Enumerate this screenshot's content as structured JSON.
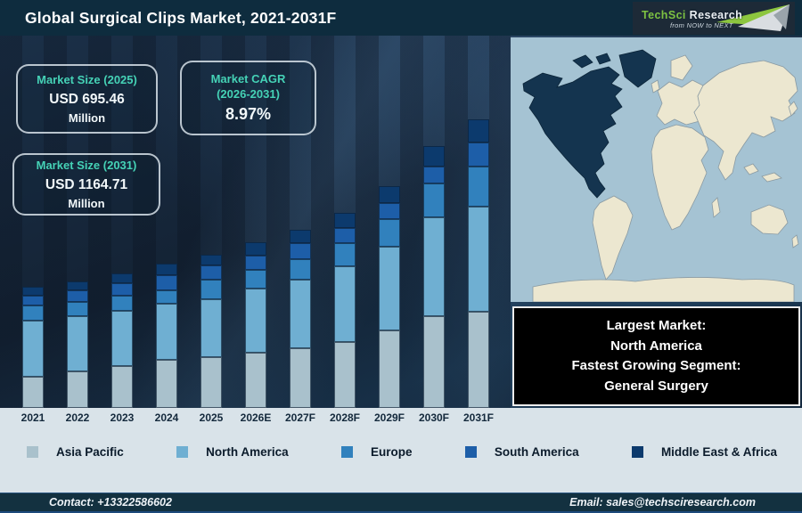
{
  "header": {
    "title": "Global Surgical Clips Market, 2021-2031F",
    "logo": {
      "part1": "TechSci",
      "part2": " Research",
      "tagline": "from NOW to NEXT",
      "green": "#7dc242"
    }
  },
  "cards": {
    "size_2025": {
      "title": "Market Size (2025)",
      "value": "USD 695.46",
      "unit": "Million"
    },
    "cagr": {
      "title_line1": "Market CAGR",
      "title_line2": "(2026-2031)",
      "value": "8.97%"
    },
    "size_2031": {
      "title": "Market Size (2031)",
      "value": "USD 1164.71",
      "unit": "Million"
    }
  },
  "chart_data": {
    "type": "bar",
    "stacked": true,
    "title": "Global Surgical Clips Market, 2021-2031F",
    "categories": [
      "2021",
      "2022",
      "2023",
      "2024",
      "2025",
      "2026E",
      "2027F",
      "2028F",
      "2029F",
      "2030F",
      "2031F"
    ],
    "units": "relative stacked-segment heights in px (chart has no value axis)",
    "series": [
      {
        "name": "Asia Pacific",
        "color": "#a9c1cc",
        "values": [
          35,
          41,
          47,
          54,
          57,
          62,
          67,
          74,
          87,
          103,
          108
        ]
      },
      {
        "name": "North America",
        "color": "#6fafd2",
        "values": [
          63,
          62,
          62,
          63,
          65,
          72,
          77,
          85,
          94,
          111,
          118
        ]
      },
      {
        "name": "Europe",
        "color": "#3181bd",
        "values": [
          17,
          16,
          17,
          15,
          22,
          21,
          23,
          26,
          31,
          38,
          45
        ]
      },
      {
        "name": "South America",
        "color": "#1d5ea8",
        "values": [
          11,
          13,
          14,
          17,
          16,
          16,
          18,
          17,
          18,
          19,
          27
        ]
      },
      {
        "name": "Middle East & Africa",
        "color": "#0c3a6d",
        "values": [
          10,
          10,
          11,
          13,
          12,
          15,
          15,
          17,
          19,
          23,
          26
        ]
      }
    ],
    "legend_position": "bottom",
    "grid": false,
    "annotations": {
      "market_size_2025": "USD 695.46 Million",
      "market_size_2031": "USD 1164.71 Million",
      "cagr_2026_2031": "8.97%"
    }
  },
  "map": {
    "highlighted_region": "North America",
    "ocean_color": "#a5c3d3",
    "land_color": "#ece7d0",
    "highlight_color": "#14344f"
  },
  "callout": {
    "lines": [
      "Largest Market:",
      "North America",
      "Fastest Growing Segment:",
      "General Surgery"
    ]
  },
  "footer": {
    "contact": "Contact: +13322586602",
    "email": "Email: sales@techsciresearch.com"
  }
}
